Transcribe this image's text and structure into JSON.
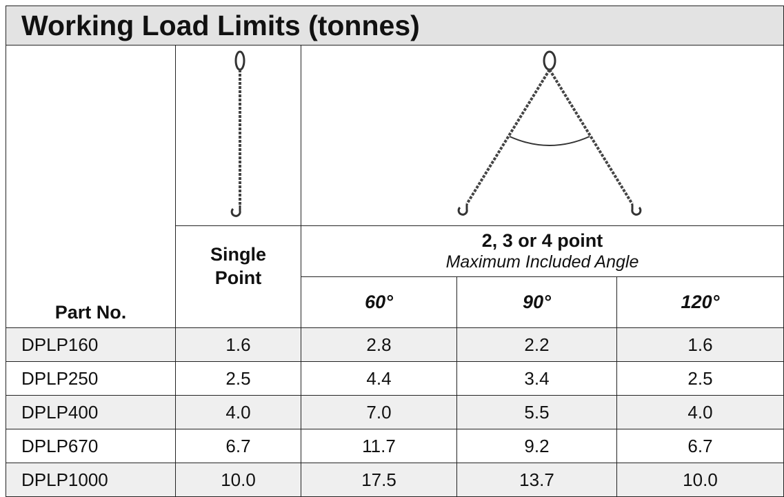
{
  "title": "Working Load Limits (tonnes)",
  "header": {
    "part_no": "Part No.",
    "single_point": "Single Point",
    "multi_point": "2, 3 or 4 point",
    "multi_point_note": "Maximum Included Angle",
    "angles": [
      "60°",
      "90°",
      "120°"
    ]
  },
  "rows": [
    [
      "DPLP160",
      "1.6",
      "2.8",
      "2.2",
      "1.6"
    ],
    [
      "DPLP250",
      "2.5",
      "4.4",
      "3.4",
      "2.5"
    ],
    [
      "DPLP400",
      "4.0",
      "7.0",
      "5.5",
      "4.0"
    ],
    [
      "DPLP670",
      "6.7",
      "11.7",
      "9.2",
      "6.7"
    ],
    [
      "DPLP1000",
      "10.0",
      "17.5",
      "13.7",
      "10.0"
    ]
  ]
}
